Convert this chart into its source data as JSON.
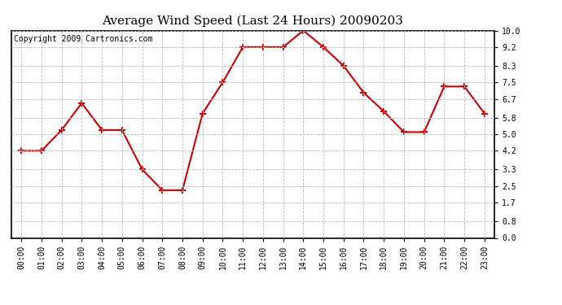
{
  "title": "Average Wind Speed (Last 24 Hours) 20090203",
  "copyright_text": "Copyright 2009 Cartronics.com",
  "hours": [
    "00:00",
    "01:00",
    "02:00",
    "03:00",
    "04:00",
    "05:00",
    "06:00",
    "07:00",
    "08:00",
    "09:00",
    "10:00",
    "11:00",
    "12:00",
    "13:00",
    "14:00",
    "15:00",
    "16:00",
    "17:00",
    "18:00",
    "19:00",
    "20:00",
    "21:00",
    "22:00",
    "23:00"
  ],
  "values": [
    4.2,
    4.2,
    5.2,
    6.5,
    5.2,
    5.2,
    3.3,
    2.3,
    2.3,
    6.0,
    7.5,
    9.2,
    9.2,
    9.2,
    10.0,
    9.2,
    8.3,
    7.0,
    6.1,
    5.1,
    5.1,
    7.3,
    7.3,
    6.0
  ],
  "yticks": [
    0.0,
    0.8,
    1.7,
    2.5,
    3.3,
    4.2,
    5.0,
    5.8,
    6.7,
    7.5,
    8.3,
    9.2,
    10.0
  ],
  "ymin": 0.0,
  "ymax": 10.0,
  "line_color": "#cc0000",
  "marker_color": "#cc0000",
  "background_color": "#ffffff",
  "plot_bg_color": "#ffffff",
  "grid_color": "#bbbbbb",
  "title_fontsize": 11,
  "copyright_fontsize": 7,
  "tick_fontsize": 7
}
